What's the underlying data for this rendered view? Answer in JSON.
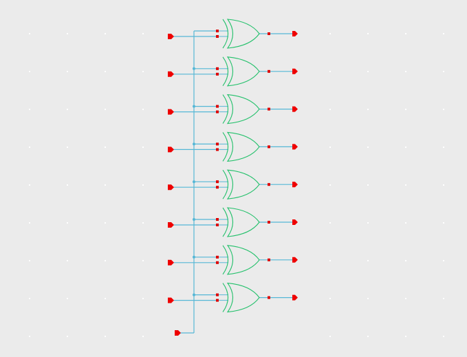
{
  "schematic": {
    "background_color": "#ebebeb",
    "grid_dot_color": "#ffffff",
    "wire_color": "#55b7d6",
    "gate_color": "#22c06a",
    "pin_color": "#dd0000",
    "port_color": "#ee0000",
    "gate_type": "xor",
    "gate_count": 8,
    "input_port_count": 9,
    "output_port_count": 8
  }
}
